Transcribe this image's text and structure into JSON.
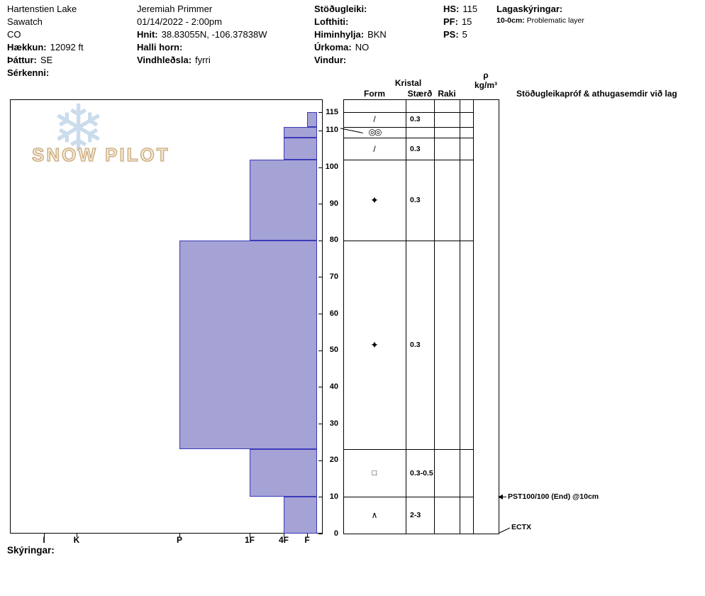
{
  "page": {
    "footer_label": "Skýringar:"
  },
  "logo": {
    "text": "SNOW PILOT"
  },
  "header": {
    "site": {
      "name": "Hartenstien Lake",
      "region": "Sawatch",
      "state": "CO",
      "elevation_label": "Hækkun:",
      "elevation_value": "12092 ft",
      "aspect_label": "Þáttur:",
      "aspect_value": "SE",
      "feature_label": "Sérkenni:"
    },
    "observation": {
      "observer": "Jeremiah Primmer",
      "datetime": "01/14/2022 - 2:00pm",
      "coords_label": "Hnit:",
      "coords_value": "38.83055N, -106.37838W",
      "slope_angle_label": "Halli horn:",
      "wind_loading_label": "Vindhleðsla:",
      "wind_loading_value": "fyrri"
    },
    "conditions": {
      "stability_label": "Stöðugleiki:",
      "air_temp_label": "Lofthiti:",
      "sky_label": "Himinhylja:",
      "sky_value": "BKN",
      "precip_label": "Úrkoma:",
      "precip_value": "NO",
      "wind_label": "Vindur:"
    },
    "totals": {
      "hs_label": "HS:",
      "hs_value": "115",
      "pf_label": "PF:",
      "pf_value": "15",
      "ps_label": "PS:",
      "ps_value": "5"
    },
    "layer_notes": {
      "title": "Lagaskýringar:",
      "items": [
        {
          "range": "10-0cm:",
          "text": "Problematic layer"
        }
      ]
    }
  },
  "table_headers": {
    "kristal": "Kristal",
    "form": "Form",
    "size": "Stærð",
    "moisture": "Raki",
    "density_symbol": "ρ",
    "density_units": "kg/m³",
    "tests": "Stöðugleikapróf & athugasemdir við lag"
  },
  "chart_data": {
    "type": "bar",
    "subtype": "snow-hardness-profile",
    "depth_axis": {
      "unit": "cm",
      "ticks": [
        0,
        10,
        20,
        30,
        40,
        50,
        60,
        70,
        80,
        90,
        100,
        110,
        115
      ],
      "range": [
        0,
        118
      ]
    },
    "hardness_axis": {
      "categories": [
        "I",
        "K",
        "P",
        "1F",
        "4F",
        "F"
      ],
      "note": "hardness decreases left to right"
    },
    "total_height_cm": 115,
    "layers": [
      {
        "top_cm": 115,
        "bottom_cm": 111,
        "hardness": "F",
        "form": "/",
        "form_name": "decomposing-fragments-icon",
        "size_mm": "0.3",
        "moisture": "",
        "density": ""
      },
      {
        "top_cm": 111,
        "bottom_cm": 108,
        "hardness": "4F",
        "form": "◎◎",
        "form_name": "graupel-icon",
        "size_mm": "",
        "moisture": "",
        "density": ""
      },
      {
        "top_cm": 108,
        "bottom_cm": 102,
        "hardness": "4F",
        "form": "/",
        "form_name": "decomposing-fragments-icon",
        "size_mm": "0.3",
        "moisture": "",
        "density": ""
      },
      {
        "top_cm": 102,
        "bottom_cm": 80,
        "hardness": "1F",
        "form": "✦",
        "form_name": "mixed-forms-icon",
        "size_mm": "0.3",
        "moisture": "",
        "density": ""
      },
      {
        "top_cm": 80,
        "bottom_cm": 23,
        "hardness": "P",
        "form": "✦",
        "form_name": "mixed-forms-icon",
        "size_mm": "0.3",
        "moisture": "",
        "density": ""
      },
      {
        "top_cm": 23,
        "bottom_cm": 10,
        "hardness": "1F",
        "form": "□",
        "form_name": "facets-icon",
        "size_mm": "0.3-0.5",
        "moisture": "",
        "density": ""
      },
      {
        "top_cm": 10,
        "bottom_cm": 0,
        "hardness": "4F",
        "form": "∧",
        "form_name": "depth-hoar-icon",
        "size_mm": "2-3",
        "moisture": "",
        "density": ""
      }
    ],
    "tests": [
      {
        "label": "PST100/100 (End) @10cm",
        "depth_cm": 10,
        "pointer": "arrow-left"
      },
      {
        "label": "ECTX",
        "depth_cm": 0,
        "pointer": "diagonal-line"
      }
    ],
    "annotated_thin_layer_depth_cm": 110,
    "bar_color": "#a5a2d6",
    "bar_border": "#3b3bb8"
  }
}
